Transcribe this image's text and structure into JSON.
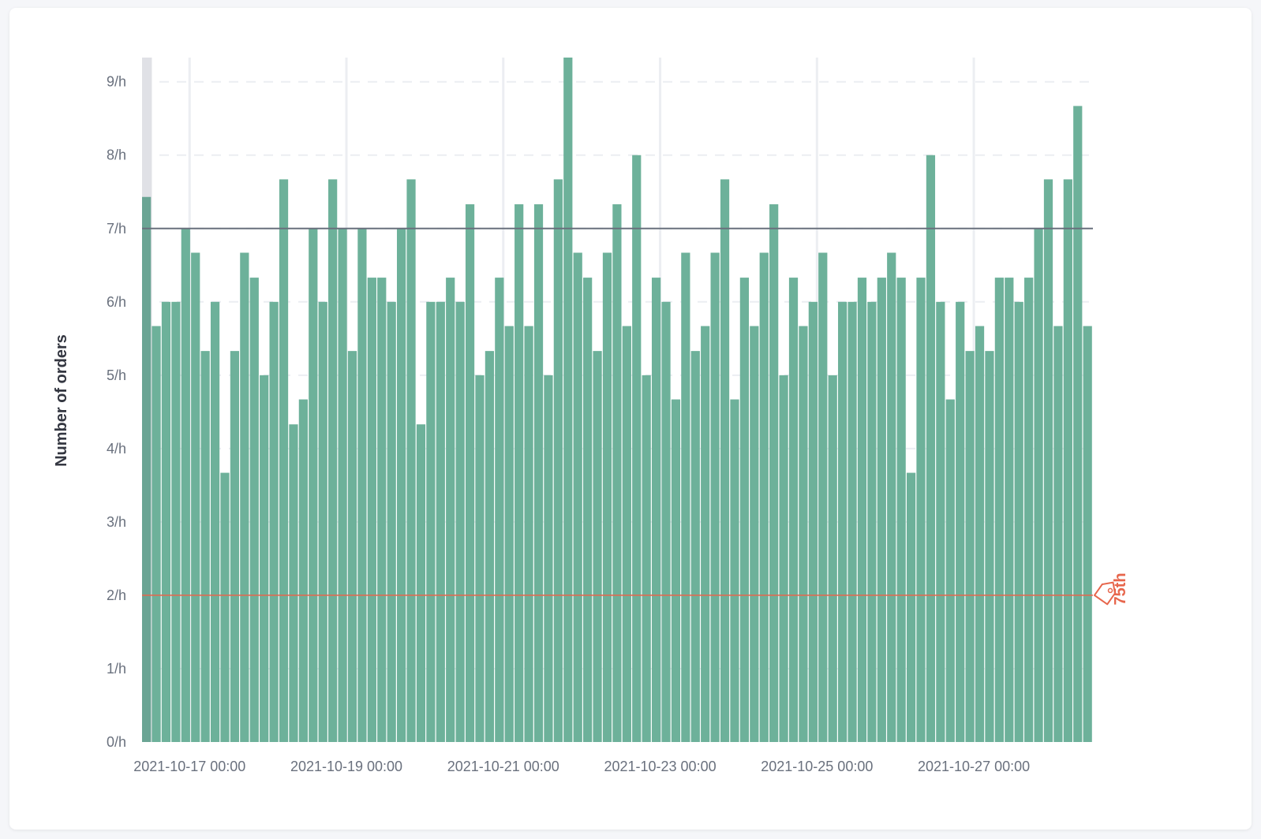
{
  "chart_data": {
    "type": "bar",
    "ylabel": "Number of orders",
    "xlabel": "",
    "ylim": [
      0,
      9.33
    ],
    "y_ticks": [
      "0/h",
      "1/h",
      "2/h",
      "3/h",
      "4/h",
      "5/h",
      "6/h",
      "7/h",
      "8/h",
      "9/h"
    ],
    "x_ticks": [
      "2021-10-17 00:00",
      "2021-10-19 00:00",
      "2021-10-21 00:00",
      "2021-10-23 00:00",
      "2021-10-25 00:00",
      "2021-10-27 00:00"
    ],
    "grid": true,
    "bar_color": "#6db19a",
    "values": [
      7.43,
      5.67,
      6,
      6,
      7,
      6.67,
      5.33,
      6,
      3.67,
      5.33,
      6.67,
      6.33,
      5,
      6,
      7.67,
      4.33,
      4.67,
      7,
      6,
      7.67,
      7,
      5.33,
      7,
      6.33,
      6.33,
      6,
      7,
      7.67,
      4.33,
      6,
      6,
      6.33,
      6,
      7.33,
      5,
      5.33,
      6.33,
      5.67,
      7.33,
      5.67,
      7.33,
      5,
      7.67,
      9.33,
      6.67,
      6.33,
      5.33,
      6.67,
      7.33,
      5.67,
      8,
      5,
      6.33,
      6,
      4.67,
      6.67,
      5.33,
      5.67,
      6.67,
      7.67,
      4.67,
      6.33,
      5.67,
      6.67,
      7.33,
      5,
      6.33,
      5.67,
      6,
      6.67,
      5,
      6,
      6,
      6.33,
      6,
      6.33,
      6.67,
      6.33,
      3.67,
      6.33,
      8,
      6,
      4.67,
      6,
      5.33,
      5.67,
      5.33,
      6.33,
      6.33,
      6,
      6.33,
      7,
      7.67,
      5.67,
      7.67,
      8.67,
      5.67
    ],
    "reference_lines": [
      {
        "value": 7,
        "color": "#69707d"
      },
      {
        "value": 2,
        "color": "#e7664c",
        "label": "75th",
        "icon": "tag-icon"
      }
    ]
  }
}
